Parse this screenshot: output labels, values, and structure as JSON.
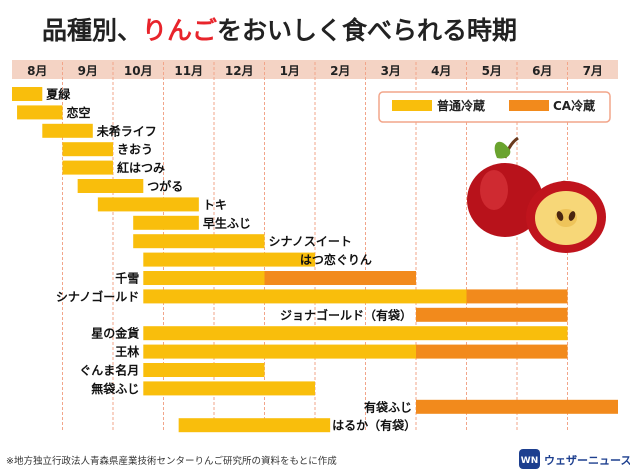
{
  "chart_data": {
    "type": "gantt",
    "title_parts": [
      "品種別、",
      "りんご",
      "をおいしく食べられる時期"
    ],
    "months": [
      "8月",
      "9月",
      "10月",
      "11月",
      "12月",
      "1月",
      "2月",
      "3月",
      "4月",
      "5月",
      "6月",
      "7月"
    ],
    "legend": [
      {
        "key": "normal",
        "label": "普通冷蔵",
        "color": "#f9be0c"
      },
      {
        "key": "ca",
        "label": "CA冷蔵",
        "color": "#f28a1c"
      }
    ],
    "series": [
      {
        "name": "夏緑",
        "segments": [
          {
            "type": "normal",
            "start": 0.0,
            "end": 0.6
          }
        ]
      },
      {
        "name": "恋空",
        "segments": [
          {
            "type": "normal",
            "start": 0.1,
            "end": 1.0
          }
        ]
      },
      {
        "name": "未希ライフ",
        "segments": [
          {
            "type": "normal",
            "start": 0.6,
            "end": 1.6
          }
        ]
      },
      {
        "name": "きおう",
        "segments": [
          {
            "type": "normal",
            "start": 1.0,
            "end": 2.0
          }
        ]
      },
      {
        "name": "紅はつみ",
        "segments": [
          {
            "type": "normal",
            "start": 1.0,
            "end": 2.0
          }
        ]
      },
      {
        "name": "つがる",
        "segments": [
          {
            "type": "normal",
            "start": 1.3,
            "end": 2.6
          }
        ]
      },
      {
        "name": "トキ",
        "segments": [
          {
            "type": "normal",
            "start": 1.7,
            "end": 3.7
          }
        ]
      },
      {
        "name": "早生ふじ",
        "segments": [
          {
            "type": "normal",
            "start": 2.4,
            "end": 3.7
          }
        ]
      },
      {
        "name": "シナノスイート",
        "segments": [
          {
            "type": "normal",
            "start": 2.4,
            "end": 5.0
          }
        ]
      },
      {
        "name": "はつ恋ぐりん",
        "segments": [
          {
            "type": "normal",
            "start": 2.6,
            "end": 6.0
          }
        ]
      },
      {
        "name": "千雪",
        "segments": [
          {
            "type": "normal",
            "start": 2.6,
            "end": 5.0
          },
          {
            "type": "ca",
            "start": 5.0,
            "end": 8.0
          }
        ]
      },
      {
        "name": "シナノゴールド",
        "segments": [
          {
            "type": "normal",
            "start": 2.6,
            "end": 9.0
          },
          {
            "type": "ca",
            "start": 9.0,
            "end": 11.0
          }
        ]
      },
      {
        "name": "ジョナゴールド（有袋）",
        "segments": [
          {
            "type": "ca",
            "start": 8.0,
            "end": 11.0
          }
        ]
      },
      {
        "name": "星の金貨",
        "segments": [
          {
            "type": "normal",
            "start": 2.6,
            "end": 11.0
          }
        ]
      },
      {
        "name": "王林",
        "segments": [
          {
            "type": "normal",
            "start": 2.6,
            "end": 8.0
          },
          {
            "type": "ca",
            "start": 8.0,
            "end": 11.0
          }
        ]
      },
      {
        "name": "ぐんま名月",
        "segments": [
          {
            "type": "normal",
            "start": 2.6,
            "end": 5.0
          }
        ]
      },
      {
        "name": "無袋ふじ",
        "segments": [
          {
            "type": "normal",
            "start": 2.6,
            "end": 6.0
          }
        ]
      },
      {
        "name": "有袋ふじ",
        "segments": [
          {
            "type": "ca",
            "start": 8.0,
            "end": 12.0
          }
        ]
      },
      {
        "name": "はるか（有袋）",
        "segments": [
          {
            "type": "normal",
            "start": 3.3,
            "end": 6.3
          }
        ]
      }
    ]
  },
  "footnote": "※地方独立行政法人青森県産業技術センターりんご研究所の資料をもとに作成",
  "brand": "ウェザーニュース",
  "brand_logo": "WN",
  "colors": {
    "month_bar": "#f4d3c4",
    "grid": "#f2a58a",
    "title_accent": "#e8242b"
  }
}
